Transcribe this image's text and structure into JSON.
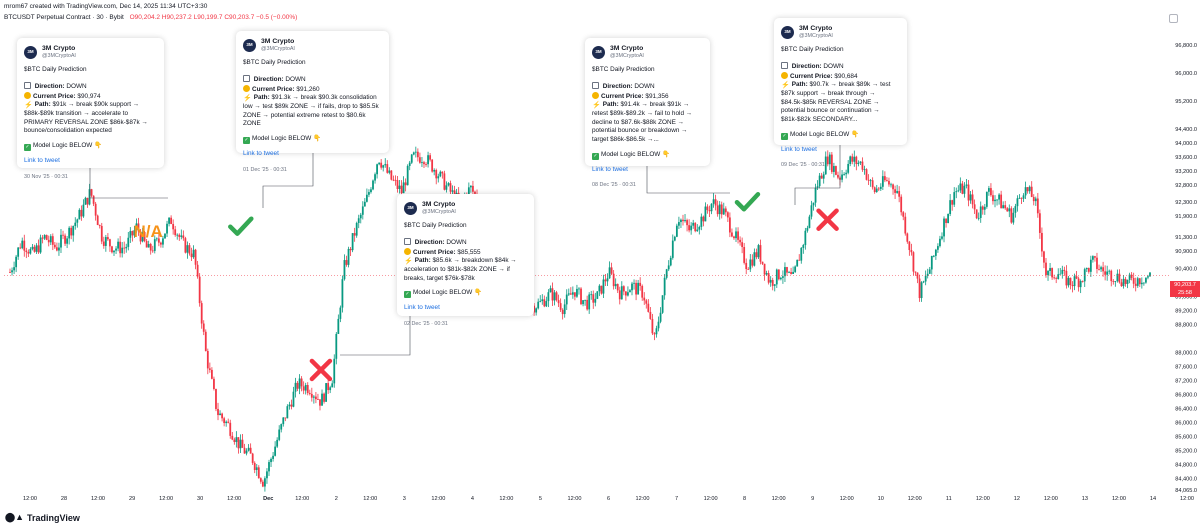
{
  "header": {
    "created_line": "mrom67 created with TradingView.com, Dec 14, 2025 11:34 UTC+3:30",
    "symbol_line": "BTCUSDT Perpetual Contract · 30 · Bybit",
    "ohlc_line": "O90,204.2  H90,237.2  L90,199.7  C90,203.7  −0.5 (−0.00%)"
  },
  "price_badge": {
    "price": "90,203.7",
    "countdown": "25:58"
  },
  "branding": {
    "logo_text": "TradingView"
  },
  "chart_data": {
    "type": "candlestick",
    "symbol": "BTCUSDT Perpetual Contract",
    "interval": "30",
    "exchange": "Bybit",
    "y_ticks": [
      96800,
      96000,
      95200,
      94400,
      94000,
      93600,
      93200,
      92800,
      92300,
      91900,
      91300,
      90900,
      90400,
      89600,
      89200,
      88800,
      88000,
      87600,
      87200,
      86800,
      86400,
      86000,
      85600,
      85200,
      84800,
      84400,
      84065
    ],
    "y_tick_labels": [
      "96,800.0",
      "96,000.0",
      "95,200.0",
      "94,400.0",
      "94,000.0",
      "93,600.0",
      "93,200.0",
      "92,800.0",
      "92,300.0",
      "91,900.0",
      "91,300.0",
      "90,900.0",
      "90,400.0",
      "89,600.0",
      "89,200.0",
      "88,800.0",
      "88,000.0",
      "87,600.0",
      "87,200.0",
      "86,800.0",
      "86,400.0",
      "86,000.0",
      "85,600.0",
      "85,200.0",
      "84,800.0",
      "84,400.0",
      "84,065.0"
    ],
    "x_tick_labels": [
      "12:00",
      "28",
      "12:00",
      "29",
      "12:00",
      "30",
      "12:00",
      "Dec",
      "12:00",
      "2",
      "12:00",
      "3",
      "12:00",
      "4",
      "12:00",
      "5",
      "12:00",
      "6",
      "12:00",
      "7",
      "12:00",
      "8",
      "12:00",
      "9",
      "12:00",
      "10",
      "12:00",
      "11",
      "12:00",
      "12",
      "12:00",
      "13",
      "12:00",
      "14",
      "12:00"
    ],
    "last_price": 90203.7,
    "price_path": [
      [
        0,
        90300
      ],
      [
        1,
        91200
      ],
      [
        2,
        90800
      ],
      [
        3,
        91300
      ],
      [
        4,
        91000
      ],
      [
        5,
        91400
      ],
      [
        6,
        91900
      ],
      [
        7,
        92600
      ],
      [
        8,
        91300
      ],
      [
        9,
        91000
      ],
      [
        10,
        91000
      ],
      [
        11,
        91600
      ],
      [
        12,
        90900
      ],
      [
        13,
        91200
      ],
      [
        14,
        91800
      ],
      [
        15,
        91100
      ],
      [
        16,
        90800
      ],
      [
        17,
        88000
      ],
      [
        18,
        86300
      ],
      [
        19,
        85900
      ],
      [
        20,
        85300
      ],
      [
        21,
        85000
      ],
      [
        22,
        84300
      ],
      [
        23,
        85300
      ],
      [
        24,
        86300
      ],
      [
        25,
        87100
      ],
      [
        26,
        87000
      ],
      [
        27,
        86600
      ],
      [
        28,
        87300
      ],
      [
        29,
        90400
      ],
      [
        30,
        91500
      ],
      [
        31,
        92400
      ],
      [
        32,
        93600
      ],
      [
        33,
        93000
      ],
      [
        34,
        92600
      ],
      [
        35,
        93600
      ],
      [
        36,
        93600
      ],
      [
        37,
        93200
      ],
      [
        38,
        92700
      ],
      [
        39,
        92300
      ],
      [
        40,
        92700
      ],
      [
        41,
        92200
      ],
      [
        42,
        91900
      ],
      [
        43,
        91600
      ],
      [
        44,
        90800
      ],
      [
        45,
        89300
      ],
      [
        46,
        89400
      ],
      [
        47,
        89700
      ],
      [
        48,
        89300
      ],
      [
        49,
        89800
      ],
      [
        50,
        89400
      ],
      [
        51,
        89600
      ],
      [
        52,
        90300
      ],
      [
        53,
        89700
      ],
      [
        54,
        89900
      ],
      [
        55,
        89700
      ],
      [
        56,
        88300
      ],
      [
        57,
        90300
      ],
      [
        58,
        91900
      ],
      [
        59,
        91500
      ],
      [
        60,
        91800
      ],
      [
        61,
        92300
      ],
      [
        62,
        92000
      ],
      [
        63,
        91300
      ],
      [
        64,
        90500
      ],
      [
        65,
        90900
      ],
      [
        66,
        90000
      ],
      [
        67,
        90300
      ],
      [
        68,
        90100
      ],
      [
        69,
        91300
      ],
      [
        70,
        92700
      ],
      [
        71,
        93600
      ],
      [
        72,
        93000
      ],
      [
        73,
        93500
      ],
      [
        74,
        93400
      ],
      [
        75,
        92600
      ],
      [
        76,
        92900
      ],
      [
        77,
        92700
      ],
      [
        78,
        91200
      ],
      [
        79,
        89700
      ],
      [
        80,
        90500
      ],
      [
        81,
        91600
      ],
      [
        82,
        92600
      ],
      [
        83,
        92700
      ],
      [
        84,
        91900
      ],
      [
        85,
        92600
      ],
      [
        86,
        92300
      ],
      [
        87,
        91900
      ],
      [
        88,
        92700
      ],
      [
        89,
        92400
      ],
      [
        90,
        90200
      ],
      [
        91,
        90300
      ],
      [
        92,
        90000
      ],
      [
        93,
        90100
      ],
      [
        94,
        90600
      ],
      [
        95,
        90300
      ],
      [
        96,
        90200
      ],
      [
        97,
        90000
      ],
      [
        98,
        90100
      ],
      [
        99,
        90200
      ]
    ],
    "markers": [
      {
        "type": "text",
        "label": "N/A",
        "color": "#f7931a",
        "time": 12,
        "price": 91300
      },
      {
        "type": "check",
        "color": "#34a853",
        "time": 20,
        "price": 91600
      },
      {
        "type": "cross",
        "color": "#f23645",
        "time": 27,
        "price": 87500
      },
      {
        "type": "check",
        "color": "#34a853",
        "time": 64,
        "price": 92300
      },
      {
        "type": "cross",
        "color": "#f23645",
        "time": 71,
        "price": 91800
      }
    ],
    "grid": false
  },
  "cards": [
    {
      "name": "3M Crypto",
      "handle": "@3MCryptoAI",
      "avatar_text": "3M",
      "title": "$BTC Daily Prediction",
      "direction_label": "Direction:",
      "direction": "DOWN",
      "price_label": "Current Price:",
      "price": "$90,974",
      "path_label": "Path:",
      "path": "$91k → break $90k support → $88k-$89k transition → accelerate to PRIMARY REVERSAL ZONE $86k-$87k → bounce/consolidation expected",
      "logic": "Model Logic BELOW 👇",
      "link": "Link to tweet",
      "date": "30 Nov '25 · 00:31"
    },
    {
      "name": "3M Crypto",
      "handle": "@3MCryptoAI",
      "avatar_text": "3M",
      "title": "$BTC Daily Prediction",
      "direction_label": "Direction:",
      "direction": "DOWN",
      "price_label": "Current Price:",
      "price": "$91,260",
      "path_label": "Path:",
      "path": "$91.3k → break $90.3k consolidation low → test $89k ZONE → if fails, drop to $85.5k ZONE → potential extreme retest to $80.6k ZONE",
      "logic": "Model Logic BELOW 👇",
      "link": "Link to tweet",
      "date": "01 Dec '25 · 00:31"
    },
    {
      "name": "3M Crypto",
      "handle": "@3MCryptoAI",
      "avatar_text": "3M",
      "title": "$BTC Daily Prediction",
      "direction_label": "Direction:",
      "direction": "DOWN",
      "price_label": "Current Price:",
      "price": "$85,555",
      "path_label": "Path:",
      "path": "$85.6k → breakdown $84k → acceleration to $81k-$82k ZONE → if breaks, target $76k-$78k",
      "logic": "Model Logic BELOW 👇",
      "link": "Link to tweet",
      "date": "02 Dec '25 · 00:31"
    },
    {
      "name": "3M Crypto",
      "handle": "@3MCryptoAI",
      "avatar_text": "3M",
      "title": "$BTC Daily Prediction",
      "direction_label": "Direction:",
      "direction": "DOWN",
      "price_label": "Current Price:",
      "price": "$91,356",
      "path_label": "Path:",
      "path": "$91.4k → break $91k → retest $89k-$89.2k → fail to hold → decline to $87.6k-$88k ZONE → potential bounce or breakdown → target $86k-$86.5k →...",
      "logic": "Model Logic BELOW 👇",
      "link": "Link to tweet",
      "date": "08 Dec '25 · 00:31"
    },
    {
      "name": "3M Crypto",
      "handle": "@3MCryptoAI",
      "avatar_text": "3M",
      "title": "$BTC Daily Prediction",
      "direction_label": "Direction:",
      "direction": "DOWN",
      "price_label": "Current Price:",
      "price": "$90,684",
      "path_label": "Path:",
      "path": "$90.7k → break $89k → test $87k support → break through → $84.5k-$85k REVERSAL ZONE → potential bounce or continuation → $81k-$82k SECONDARY...",
      "logic": "Model Logic BELOW 👇",
      "link": "Link to tweet",
      "date": "09 Dec '25 · 00:31"
    }
  ]
}
